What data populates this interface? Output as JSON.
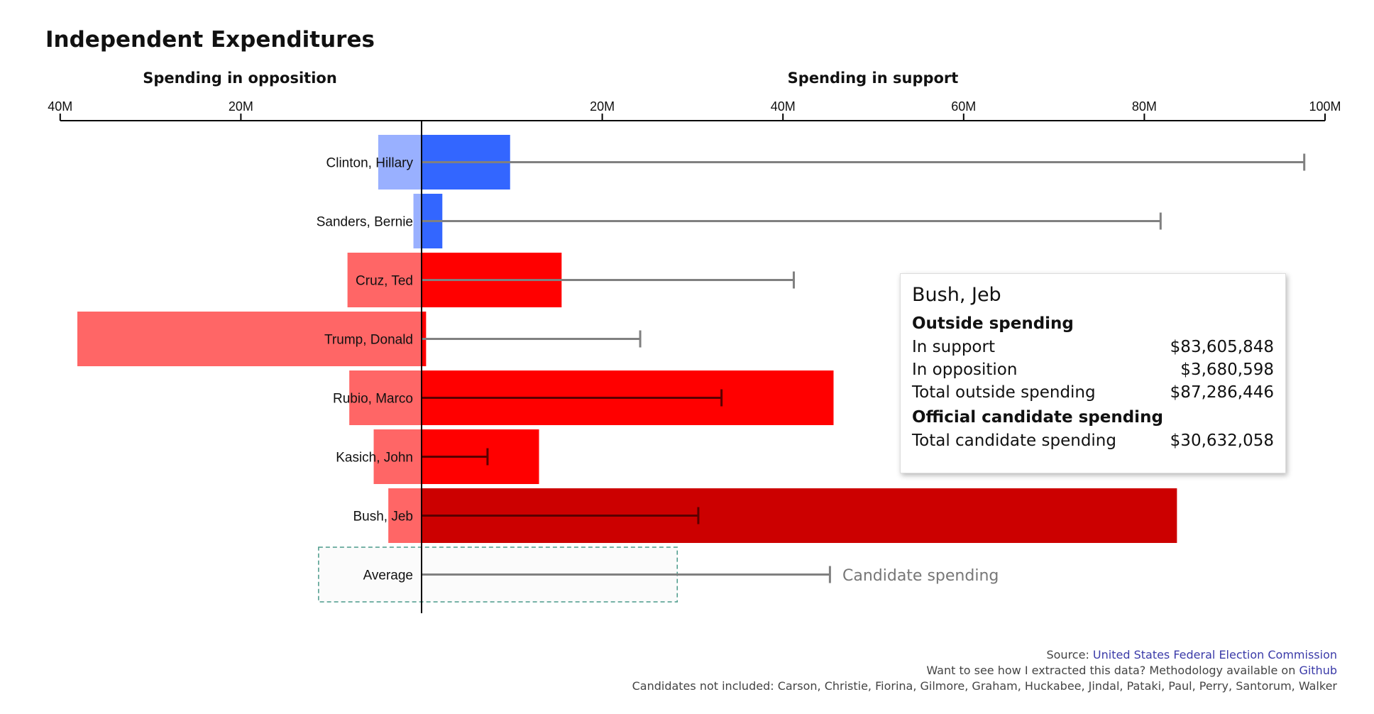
{
  "title": "Independent Expenditures",
  "axis": {
    "left_label": "Spending in opposition",
    "right_label": "Spending in support",
    "ticks": [
      {
        "value": -40,
        "label": "40M"
      },
      {
        "value": -20,
        "label": "20M"
      },
      {
        "value": 20,
        "label": "20M"
      },
      {
        "value": 40,
        "label": "40M"
      },
      {
        "value": 60,
        "label": "60M"
      },
      {
        "value": 80,
        "label": "80M"
      },
      {
        "value": 100,
        "label": "100M"
      }
    ]
  },
  "chart_data": {
    "type": "bar",
    "title": "Independent Expenditures",
    "units": "millions USD",
    "xlim": [
      -40,
      100
    ],
    "categories": [
      "Clinton, Hillary",
      "Sanders, Bernie",
      "Cruz, Ted",
      "Trump, Donald",
      "Rubio, Marco",
      "Kasich, John",
      "Bush, Jeb",
      "Average"
    ],
    "series": [
      {
        "name": "Spending in opposition",
        "values": [
          4.8,
          0.9,
          8.2,
          38.1,
          8.0,
          5.3,
          3.68,
          11.4
        ]
      },
      {
        "name": "Spending in support",
        "values": [
          9.8,
          2.3,
          15.5,
          0.5,
          45.6,
          13.0,
          83.61,
          28.3
        ]
      },
      {
        "name": "Candidate spending",
        "values": [
          97.7,
          81.8,
          41.2,
          24.2,
          33.2,
          7.3,
          30.63,
          45.2
        ]
      }
    ],
    "party": [
      "dem",
      "dem",
      "rep",
      "rep",
      "rep",
      "rep",
      "rep",
      "avg"
    ],
    "highlighted": "Bush, Jeb",
    "annotations": [
      "Candidate spending"
    ]
  },
  "colors": {
    "dem_support": "#3366ff",
    "dem_oppose": "#99b0ff",
    "rep_support": "#ff0000",
    "rep_oppose": "#ff6666",
    "rep_support_highlight": "#cc0000",
    "candidate_line": "#808080",
    "average_box": "#4a9a8a"
  },
  "tooltip": {
    "name": "Bush, Jeb",
    "outside_heading": "Outside spending",
    "rows": [
      {
        "label": "In support",
        "value": "$83,605,848"
      },
      {
        "label": "In opposition",
        "value": "$3,680,598"
      },
      {
        "label": "Total outside spending",
        "value": "$87,286,446"
      }
    ],
    "official_heading": "Official candidate spending",
    "official_rows": [
      {
        "label": "Total candidate spending",
        "value": "$30,632,058"
      }
    ]
  },
  "footer": {
    "source_prefix": "Source: ",
    "source_link": "United States Federal Election Commission",
    "method_prefix": "Want to see how I extracted this data? Methodology available on ",
    "method_link": "Github",
    "excluded": "Candidates not included: Carson, Christie, Fiorina, Gilmore, Graham, Huckabee, Jindal, Pataki, Paul, Perry, Santorum, Walker"
  }
}
